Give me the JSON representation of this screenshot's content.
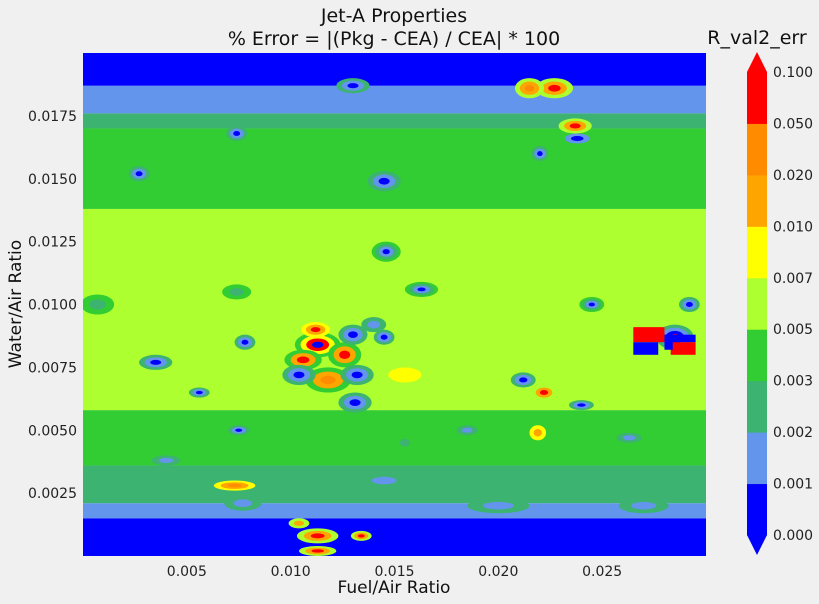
{
  "chart_data": {
    "type": "heatmap",
    "subtype": "filled-contour",
    "title": "Jet-A Properties",
    "subtitle": "% Error = |(Pkg - CEA) / CEA| * 100",
    "xlabel": "Fuel/Air Ratio",
    "ylabel": "Water/Air Ratio",
    "xlim": [
      0.0,
      0.03
    ],
    "ylim": [
      0.0,
      0.02
    ],
    "x_ticks": [
      "0.005",
      "0.010",
      "0.015",
      "0.020",
      "0.025"
    ],
    "y_ticks": [
      "0.0025",
      "0.0050",
      "0.0075",
      "0.0100",
      "0.0125",
      "0.0150",
      "0.0175"
    ],
    "grid": false,
    "colorbar": {
      "label": "R_val2_err",
      "levels": [
        "0.000",
        "0.001",
        "0.002",
        "0.003",
        "0.005",
        "0.007",
        "0.010",
        "0.020",
        "0.050",
        "0.100"
      ],
      "colors": [
        "#0000ff",
        "#6495ed",
        "#3cb371",
        "#32cd32",
        "#adff2f",
        "#ffff00",
        "#ffa500",
        "#ff8c00",
        "#ff0000"
      ],
      "extend": "both",
      "under_color": "#0000ff",
      "over_color": "#ff0000"
    },
    "bands": [
      {
        "y_from": 0.0,
        "y_to": 0.0015,
        "level": 0
      },
      {
        "y_from": 0.0015,
        "y_to": 0.0021,
        "level": 1
      },
      {
        "y_from": 0.0021,
        "y_to": 0.0036,
        "level": 2
      },
      {
        "y_from": 0.0036,
        "y_to": 0.0058,
        "level": 3
      },
      {
        "y_from": 0.0058,
        "y_to": 0.0138,
        "level": 4
      },
      {
        "y_from": 0.0138,
        "y_to": 0.017,
        "level": 3
      },
      {
        "y_from": 0.017,
        "y_to": 0.0176,
        "level": 2
      },
      {
        "y_from": 0.0176,
        "y_to": 0.0187,
        "level": 1
      },
      {
        "y_from": 0.0187,
        "y_to": 0.02,
        "level": 0
      }
    ],
    "features": [
      {
        "x": 0.0113,
        "y": 0.0084,
        "rx": 0.0011,
        "ry": 0.0005,
        "levels": [
          3,
          5,
          8,
          0
        ]
      },
      {
        "x": 0.0106,
        "y": 0.0078,
        "rx": 0.0009,
        "ry": 0.0004,
        "levels": [
          3,
          6,
          8
        ]
      },
      {
        "x": 0.0118,
        "y": 0.007,
        "rx": 0.0011,
        "ry": 0.0005,
        "levels": [
          3,
          6,
          7
        ]
      },
      {
        "x": 0.0126,
        "y": 0.008,
        "rx": 0.0008,
        "ry": 0.0005,
        "levels": [
          3,
          6,
          8
        ]
      },
      {
        "x": 0.0132,
        "y": 0.0072,
        "rx": 0.0008,
        "ry": 0.0004,
        "levels": [
          2,
          1,
          0
        ]
      },
      {
        "x": 0.0104,
        "y": 0.0072,
        "rx": 0.0008,
        "ry": 0.0004,
        "levels": [
          2,
          1,
          0
        ]
      },
      {
        "x": 0.013,
        "y": 0.0088,
        "rx": 0.0007,
        "ry": 0.0004,
        "levels": [
          2,
          1,
          0
        ]
      },
      {
        "x": 0.0131,
        "y": 0.0061,
        "rx": 0.0008,
        "ry": 0.0004,
        "levels": [
          2,
          1,
          0
        ]
      },
      {
        "x": 0.0112,
        "y": 0.009,
        "rx": 0.0007,
        "ry": 0.0003,
        "levels": [
          5,
          6,
          8
        ]
      },
      {
        "x": 0.0227,
        "y": 0.0186,
        "rx": 0.0009,
        "ry": 0.0004,
        "levels": [
          4,
          6,
          8
        ]
      },
      {
        "x": 0.0215,
        "y": 0.0186,
        "rx": 0.0007,
        "ry": 0.0004,
        "levels": [
          4,
          6,
          7
        ]
      },
      {
        "x": 0.0237,
        "y": 0.0171,
        "rx": 0.0008,
        "ry": 0.0003,
        "levels": [
          4,
          6,
          8
        ]
      },
      {
        "x": 0.0238,
        "y": 0.0166,
        "rx": 0.0006,
        "ry": 0.0002,
        "levels": [
          1,
          0
        ]
      },
      {
        "x": 0.0222,
        "y": 0.0065,
        "rx": 0.0006,
        "ry": 0.0003,
        "levels": [
          4,
          6,
          8
        ]
      },
      {
        "x": 0.0219,
        "y": 0.0049,
        "rx": 0.0004,
        "ry": 0.0003,
        "levels": [
          5,
          6
        ]
      },
      {
        "x": 0.0212,
        "y": 0.007,
        "rx": 0.0006,
        "ry": 0.0003,
        "levels": [
          2,
          1,
          0
        ]
      },
      {
        "x": 0.024,
        "y": 0.006,
        "rx": 0.0006,
        "ry": 0.0002,
        "levels": [
          2,
          1,
          0
        ]
      },
      {
        "x": 0.0073,
        "y": 0.0028,
        "rx": 0.001,
        "ry": 0.0002,
        "levels": [
          5,
          6,
          7
        ]
      },
      {
        "x": 0.0113,
        "y": 0.0008,
        "rx": 0.001,
        "ry": 0.0003,
        "levels": [
          4,
          6,
          8
        ]
      },
      {
        "x": 0.0113,
        "y": 0.0002,
        "rx": 0.0009,
        "ry": 0.0002,
        "levels": [
          4,
          6,
          8
        ]
      },
      {
        "x": 0.0134,
        "y": 0.0008,
        "rx": 0.0005,
        "ry": 0.0002,
        "levels": [
          4,
          6,
          8
        ]
      },
      {
        "x": 0.0104,
        "y": 0.0013,
        "rx": 0.0005,
        "ry": 0.0002,
        "levels": [
          4,
          6
        ]
      },
      {
        "x": 0.0077,
        "y": 0.0021,
        "rx": 0.0009,
        "ry": 0.0003,
        "levels": [
          2,
          1
        ]
      },
      {
        "x": 0.02,
        "y": 0.002,
        "rx": 0.0015,
        "ry": 0.0003,
        "levels": [
          2,
          1
        ]
      },
      {
        "x": 0.027,
        "y": 0.002,
        "rx": 0.0012,
        "ry": 0.0003,
        "levels": [
          2,
          1
        ]
      },
      {
        "x": 0.0145,
        "y": 0.003,
        "rx": 0.0012,
        "ry": 0.0003,
        "levels": [
          2,
          1
        ]
      },
      {
        "x": 0.0285,
        "y": 0.0087,
        "rx": 0.0009,
        "ry": 0.0005,
        "levels": [
          2,
          1,
          0,
          8
        ]
      },
      {
        "x": 0.0292,
        "y": 0.01,
        "rx": 0.0005,
        "ry": 0.0003,
        "levels": [
          2,
          1,
          0
        ]
      },
      {
        "x": 0.0007,
        "y": 0.01,
        "rx": 0.0008,
        "ry": 0.0004,
        "levels": [
          3,
          2
        ]
      },
      {
        "x": 0.0035,
        "y": 0.0077,
        "rx": 0.0008,
        "ry": 0.0003,
        "levels": [
          2,
          1,
          0
        ]
      },
      {
        "x": 0.0074,
        "y": 0.0105,
        "rx": 0.0007,
        "ry": 0.0003,
        "levels": [
          3,
          2
        ]
      },
      {
        "x": 0.0145,
        "y": 0.0087,
        "rx": 0.0005,
        "ry": 0.0003,
        "levels": [
          2,
          1,
          0
        ]
      },
      {
        "x": 0.0078,
        "y": 0.0085,
        "rx": 0.0005,
        "ry": 0.0003,
        "levels": [
          2,
          1,
          0
        ]
      },
      {
        "x": 0.0056,
        "y": 0.0065,
        "rx": 0.0005,
        "ry": 0.0002,
        "levels": [
          2,
          1,
          0
        ]
      },
      {
        "x": 0.014,
        "y": 0.0092,
        "rx": 0.0006,
        "ry": 0.0003,
        "levels": [
          2,
          1
        ]
      },
      {
        "x": 0.0155,
        "y": 0.0072,
        "rx": 0.0008,
        "ry": 0.0003,
        "levels": [
          5
        ]
      },
      {
        "x": 0.0146,
        "y": 0.0121,
        "rx": 0.0007,
        "ry": 0.0004,
        "levels": [
          3,
          2,
          1,
          0
        ]
      },
      {
        "x": 0.0163,
        "y": 0.0106,
        "rx": 0.0008,
        "ry": 0.0003,
        "levels": [
          3,
          2,
          1,
          0
        ]
      },
      {
        "x": 0.0145,
        "y": 0.0149,
        "rx": 0.0008,
        "ry": 0.0004,
        "levels": [
          2,
          1,
          0
        ]
      },
      {
        "x": 0.0074,
        "y": 0.0168,
        "rx": 0.0005,
        "ry": 0.0003,
        "levels": [
          2,
          1,
          0
        ]
      },
      {
        "x": 0.0027,
        "y": 0.0152,
        "rx": 0.0005,
        "ry": 0.0003,
        "levels": [
          2,
          1,
          0
        ]
      },
      {
        "x": 0.013,
        "y": 0.0187,
        "rx": 0.0008,
        "ry": 0.0003,
        "levels": [
          2,
          1,
          0
        ]
      },
      {
        "x": 0.0245,
        "y": 0.01,
        "rx": 0.0006,
        "ry": 0.0003,
        "levels": [
          3,
          2,
          1,
          0
        ]
      },
      {
        "x": 0.022,
        "y": 0.016,
        "rx": 0.0004,
        "ry": 0.0003,
        "levels": [
          2,
          1,
          0
        ]
      },
      {
        "x": 0.0155,
        "y": 0.0045,
        "rx": 0.0005,
        "ry": 0.0003,
        "levels": [
          3,
          2
        ]
      },
      {
        "x": 0.0075,
        "y": 0.005,
        "rx": 0.0005,
        "ry": 0.0002,
        "levels": [
          2,
          1,
          0
        ]
      },
      {
        "x": 0.0185,
        "y": 0.005,
        "rx": 0.0005,
        "ry": 0.0002,
        "levels": [
          2,
          1
        ]
      },
      {
        "x": 0.0263,
        "y": 0.0047,
        "rx": 0.0006,
        "ry": 0.0002,
        "levels": [
          2,
          1
        ]
      },
      {
        "x": 0.004,
        "y": 0.0038,
        "rx": 0.0007,
        "ry": 0.0002,
        "levels": [
          2,
          1
        ]
      }
    ],
    "patches": [
      {
        "x": 0.0265,
        "y": 0.0085,
        "w": 0.0015,
        "h": 0.0006,
        "level": 8
      },
      {
        "x": 0.028,
        "y": 0.0085,
        "w": 0.0015,
        "h": 0.0003,
        "level": 0
      },
      {
        "x": 0.0283,
        "y": 0.008,
        "w": 0.0012,
        "h": 0.0005,
        "level": 8
      },
      {
        "x": 0.0265,
        "y": 0.008,
        "w": 0.0012,
        "h": 0.0005,
        "level": 0
      },
      {
        "x": 0.028,
        "y": 0.0082,
        "w": 0.0004,
        "h": 0.0006,
        "level": 0
      }
    ]
  }
}
